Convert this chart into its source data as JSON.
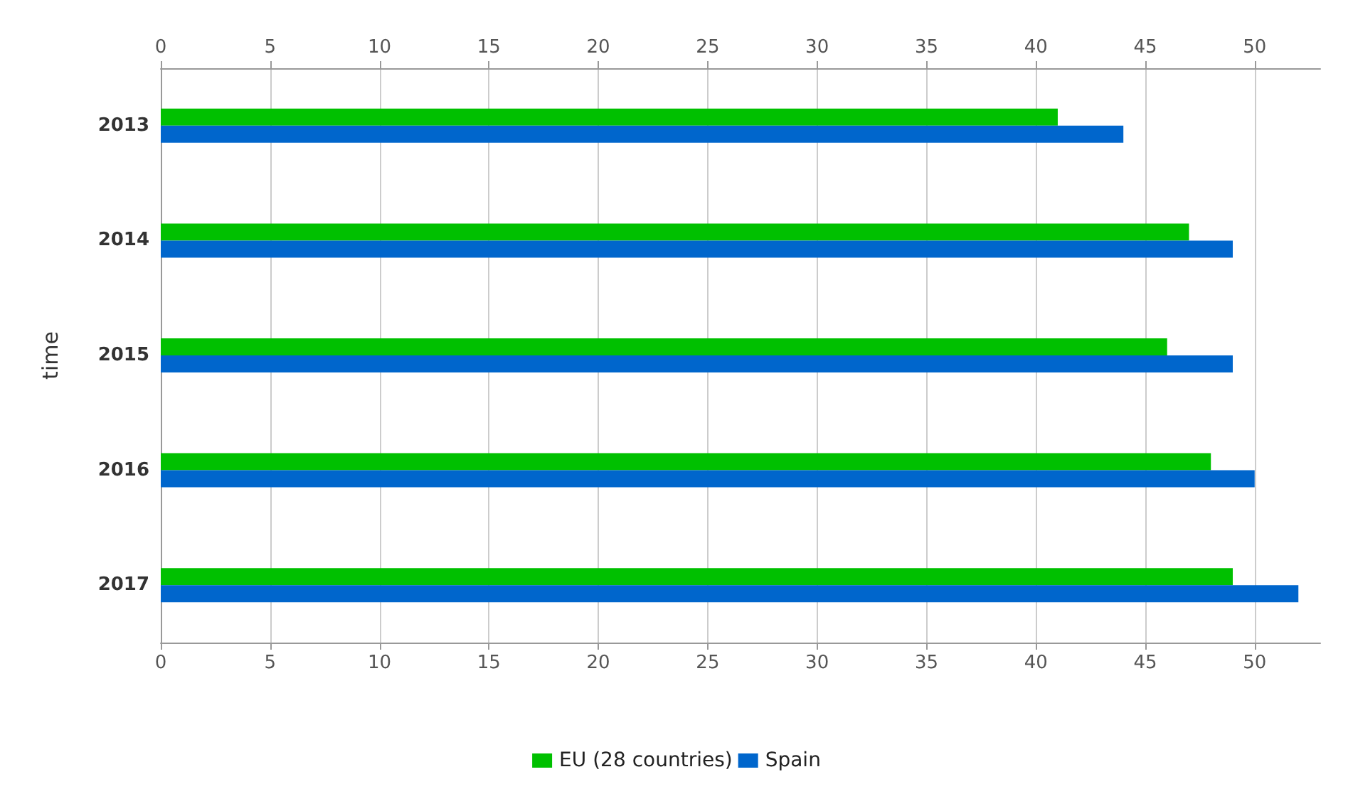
{
  "chart_data": {
    "type": "bar",
    "orientation": "horizontal",
    "ylabel": "time",
    "categories": [
      "2013",
      "2014",
      "2015",
      "2016",
      "2017"
    ],
    "series": [
      {
        "name": "EU (28 countries)",
        "color": "#00c000",
        "values": [
          41,
          47,
          46,
          48,
          49
        ]
      },
      {
        "name": "Spain",
        "color": "#0066cc",
        "values": [
          44,
          49,
          49,
          50,
          52
        ]
      }
    ],
    "xlim": [
      0,
      53
    ],
    "xticks": [
      0,
      5,
      10,
      15,
      20,
      25,
      30,
      35,
      40,
      45,
      50
    ],
    "x2lim": [
      0,
      53
    ],
    "x2ticks": [
      0,
      5,
      10,
      15,
      20,
      25,
      30,
      35,
      40,
      45,
      50
    ],
    "grid": "x",
    "legend": "bottom"
  }
}
